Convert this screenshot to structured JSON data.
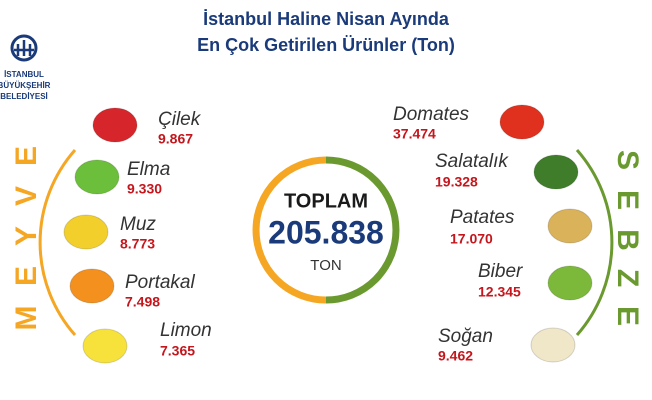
{
  "logo": {
    "lines": [
      "İSTANBUL",
      "BÜYÜKŞEHİR",
      "BELEDİYESİ"
    ]
  },
  "header": {
    "title_lines": [
      "İstanbul Haline Nisan Ayında",
      "En Çok Getirilen Ürünler (Ton)"
    ]
  },
  "total": {
    "label": "TOPLAM",
    "value": "205.838",
    "unit": "TON"
  },
  "fruits": {
    "letters": [
      "M",
      "E",
      "Y",
      "V",
      "E"
    ],
    "items": [
      {
        "name": "Çilek",
        "value": "9.867"
      },
      {
        "name": "Elma",
        "value": "9.330"
      },
      {
        "name": "Muz",
        "value": "8.773"
      },
      {
        "name": "Portakal",
        "value": "7.498"
      },
      {
        "name": "Limon",
        "value": "7.365"
      }
    ]
  },
  "vegetables": {
    "letters": [
      "S",
      "E",
      "B",
      "Z",
      "E"
    ],
    "items": [
      {
        "name": "Domates",
        "value": "37.474"
      },
      {
        "name": "Salatalık",
        "value": "19.328"
      },
      {
        "name": "Patates",
        "value": "17.070"
      },
      {
        "name": "Biber",
        "value": "12.345"
      },
      {
        "name": "Soğan",
        "value": "9.462"
      }
    ]
  }
}
